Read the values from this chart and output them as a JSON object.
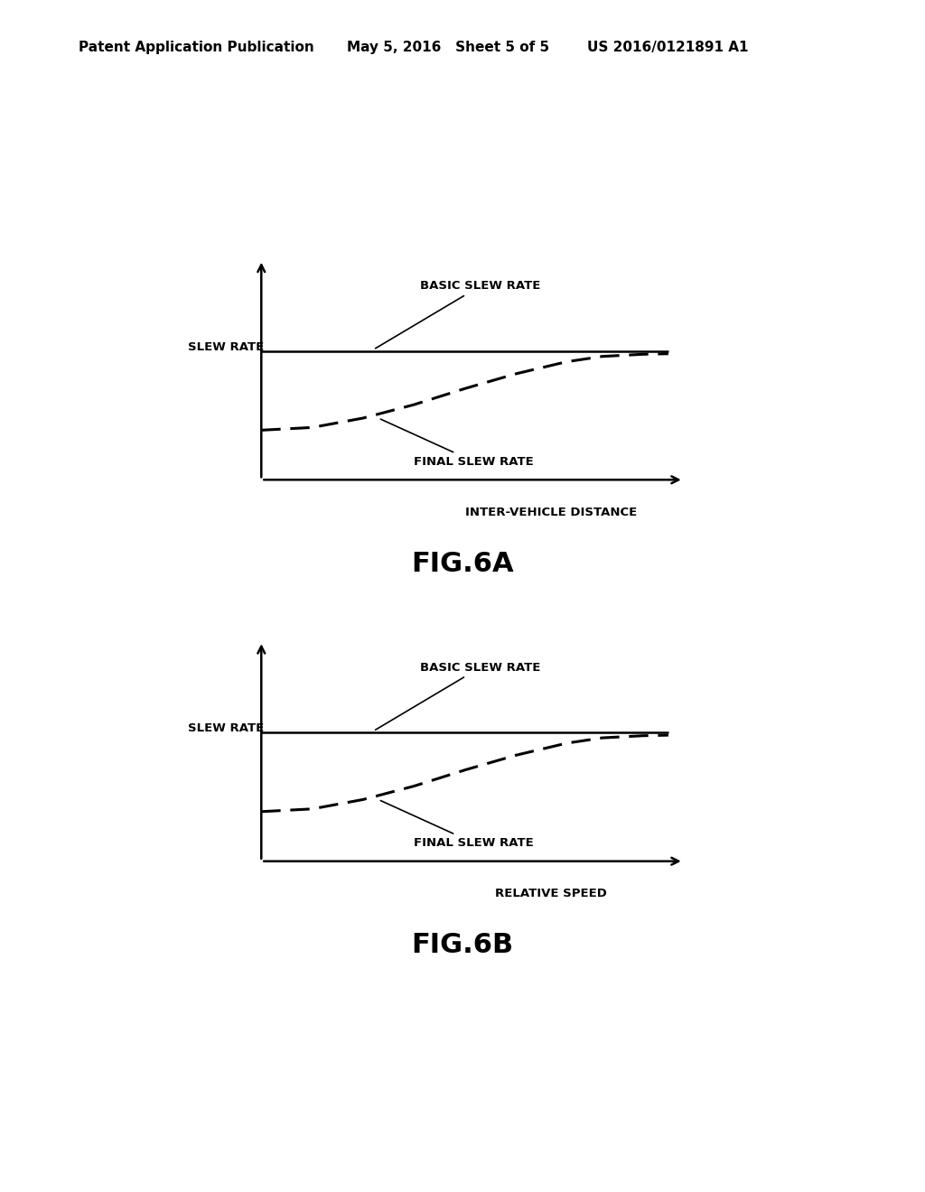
{
  "header_left": "Patent Application Publication",
  "header_mid": "May 5, 2016   Sheet 5 of 5",
  "header_right": "US 2016/0121891 A1",
  "fig6a_title": "FIG.6A",
  "fig6b_title": "FIG.6B",
  "ylabel": "SLEW RATE",
  "fig6a_xlabel": "INTER-VEHICLE DISTANCE",
  "fig6b_xlabel": "RELATIVE SPEED",
  "basic_slew_label": "BASIC SLEW RATE",
  "final_slew_label": "FINAL SLEW RATE",
  "background_color": "#ffffff",
  "line_color": "#000000",
  "header_fontsize": 11,
  "annotation_fontsize": 9.5,
  "fig_caption_fontsize": 22,
  "slew_rate_fontsize": 9.5
}
